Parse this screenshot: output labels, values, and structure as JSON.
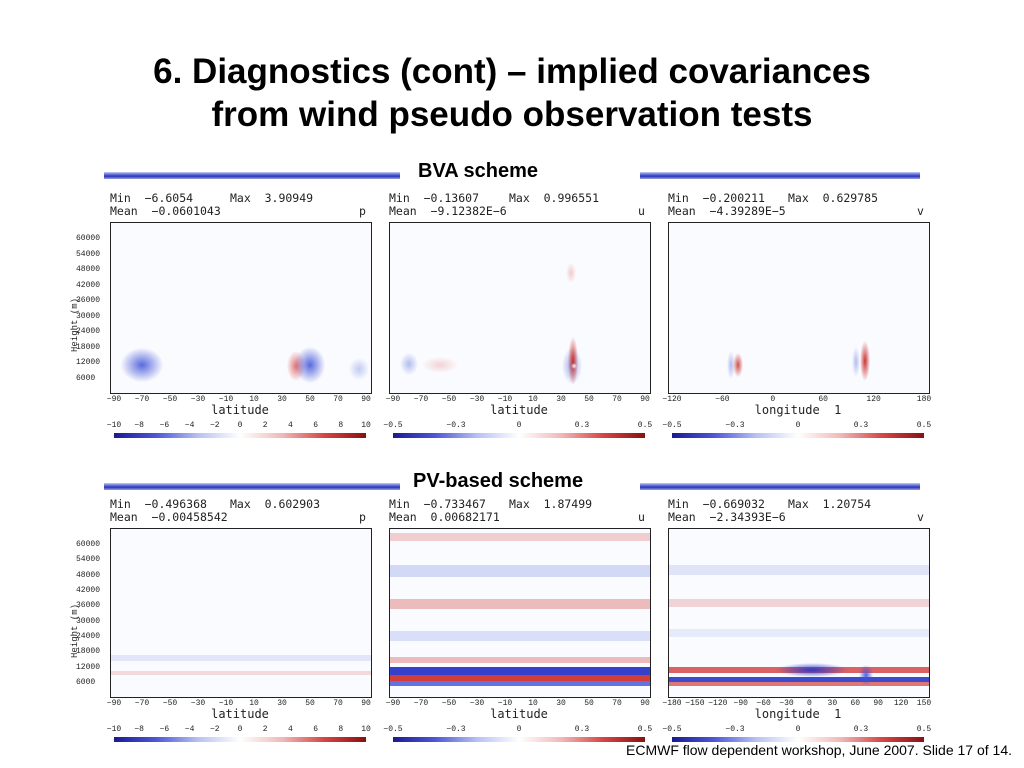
{
  "slide": {
    "title_line1": "6. Diagnostics (cont) – implied covariances",
    "title_line2": "from wind pseudo observation tests",
    "footer": "ECMWF flow dependent workshop, June 2007.  Slide 17 of 14."
  },
  "sections": [
    {
      "label": "BVA scheme",
      "panels": [
        {
          "min": "Min  −6.6054",
          "max": "Max  3.90949",
          "mean": "Mean  −0.0601043",
          "var": "p",
          "xlabel": "latitude",
          "xticks": [
            "−90",
            "−70",
            "−50",
            "−30",
            "−10",
            "10",
            "30",
            "50",
            "70",
            "90"
          ],
          "cticks": [
            "−10",
            "−8",
            "−6",
            "−4",
            "−2",
            "0",
            "2",
            "4",
            "6",
            "8",
            "10"
          ]
        },
        {
          "min": "Min  −0.13607",
          "max": "Max  0.996551",
          "mean": "Mean  −9.12382E−6",
          "var": "u",
          "xlabel": "latitude",
          "xticks": [
            "−90",
            "−70",
            "−50",
            "−30",
            "−10",
            "10",
            "30",
            "50",
            "70",
            "90"
          ],
          "cticks": [
            "−0.5",
            "−0.3",
            "0",
            "0.3",
            "0.5"
          ]
        },
        {
          "min": "Min  −0.200211",
          "max": "Max  0.629785",
          "mean": "Mean  −4.39289E−5",
          "var": "v",
          "xlabel": "longitude  1",
          "xticks": [
            "−120",
            "−60",
            "0",
            "60",
            "120",
            "180"
          ],
          "cticks": [
            "−0.5",
            "−0.3",
            "0",
            "0.3",
            "0.5"
          ]
        }
      ]
    },
    {
      "label": "PV-based scheme",
      "panels": [
        {
          "min": "Min  −0.496368",
          "max": "Max  0.602903",
          "mean": "Mean  −0.00458542",
          "var": "p",
          "xlabel": "latitude",
          "xticks": [
            "−90",
            "−70",
            "−50",
            "−30",
            "−10",
            "10",
            "30",
            "50",
            "70",
            "90"
          ],
          "cticks": [
            "−10",
            "−8",
            "−6",
            "−4",
            "−2",
            "0",
            "2",
            "4",
            "6",
            "8",
            "10"
          ]
        },
        {
          "min": "Min  −0.733467",
          "max": "Max  1.87499",
          "mean": "Mean  0.00682171",
          "var": "u",
          "xlabel": "latitude",
          "xticks": [
            "−90",
            "−70",
            "−50",
            "−30",
            "−10",
            "10",
            "30",
            "50",
            "70",
            "90"
          ],
          "cticks": [
            "−0.5",
            "−0.3",
            "0",
            "0.3",
            "0.5"
          ]
        },
        {
          "min": "Min  −0.669032",
          "max": "Max  1.20754",
          "mean": "Mean  −2.34393E−6",
          "var": "v",
          "xlabel": "longitude  1",
          "xticks": [
            "−180",
            "−150",
            "−120",
            "−90",
            "−60",
            "−30",
            "0",
            "30",
            "60",
            "90",
            "120",
            "150"
          ],
          "cticks": [
            "−0.5",
            "−0.3",
            "0",
            "0.3",
            "0.5"
          ]
        }
      ]
    }
  ],
  "yaxis": {
    "label": "Height (m)",
    "ticks": [
      "60000",
      "54000",
      "48000",
      "42000",
      "36000",
      "30000",
      "24000",
      "18000",
      "12000",
      "6000"
    ]
  },
  "colors": {
    "title_rule": "#2a35b8",
    "positive": "#d54646",
    "negative": "#4b57d8"
  }
}
